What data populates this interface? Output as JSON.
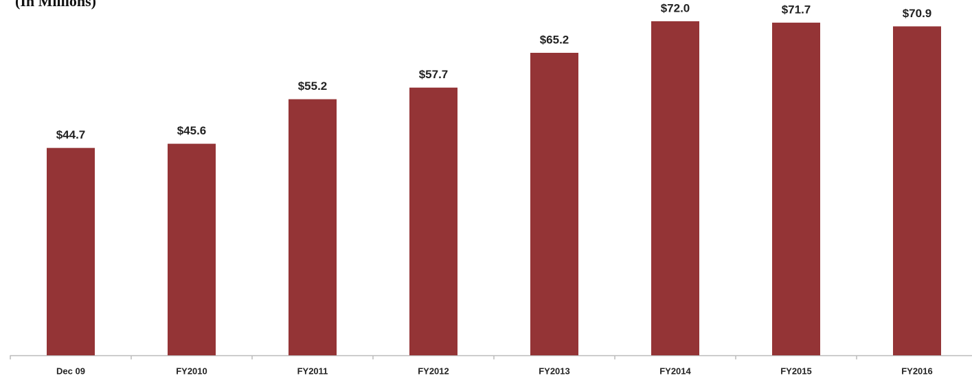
{
  "chart_data": {
    "type": "bar",
    "title": "(In Millions)",
    "categories": [
      "Dec 09",
      "FY2010",
      "FY2011",
      "FY2012",
      "FY2013",
      "FY2014",
      "FY2015",
      "FY2016"
    ],
    "values": [
      44.7,
      45.6,
      55.2,
      57.7,
      65.2,
      72.0,
      71.7,
      70.9
    ],
    "value_labels": [
      "$44.7",
      "$45.6",
      "$55.2",
      "$57.7",
      "$65.2",
      "$72.0",
      "$71.7",
      "$70.9"
    ],
    "color": "#943436"
  }
}
